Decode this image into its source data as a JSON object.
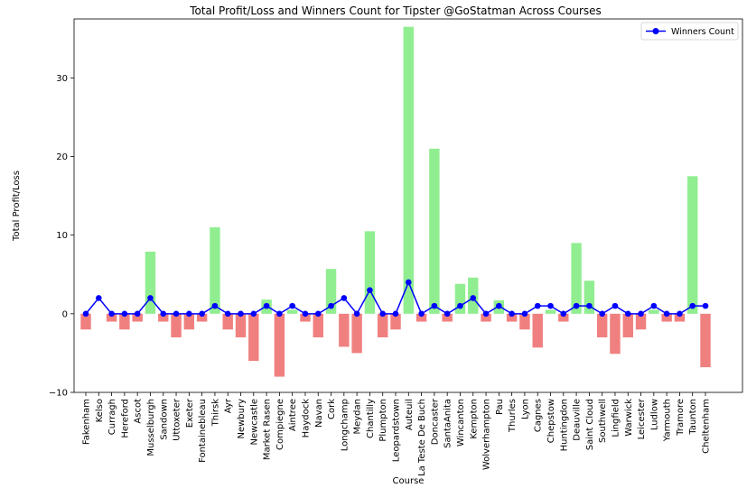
{
  "chart_data": {
    "type": "bar",
    "title": "Total Profit/Loss and Winners Count for Tipster @GoStatman Across Courses",
    "xlabel": "Course",
    "ylabel": "Total Profit/Loss",
    "ylim": [
      -10,
      37.5
    ],
    "yticks": [
      -10,
      0,
      10,
      20,
      30
    ],
    "categories": [
      "Fakenham",
      "Kelso",
      "Curragh",
      "Hereford",
      "Ascot",
      "Musselburgh",
      "Sandown",
      "Uttoxeter",
      "Exeter",
      "Fontainebleau",
      "Thirsk",
      "Ayr",
      "Newbury",
      "Newcastle",
      "Market Rasen",
      "Compiegne",
      "Aintree",
      "Haydock",
      "Navan",
      "Cork",
      "Longchamp",
      "Meydan",
      "Chantilly",
      "Plumpton",
      "Leopardstown",
      "Auteuil",
      "La Teste De Buch",
      "Doncaster",
      "SantaAnita",
      "Wincanton",
      "Kempton",
      "Wolverhampton",
      "Pau",
      "Thurles",
      "Lyon",
      "Cagnes",
      "Chepstow",
      "Huntingdon",
      "Deauville",
      "Saint Cloud",
      "Southwell",
      "Lingfield",
      "Warwick",
      "Leicester",
      "Ludlow",
      "Yarmouth",
      "Tramore",
      "Taunton",
      "Cheltenham"
    ],
    "series": [
      {
        "kind": "bar",
        "values": [
          -2,
          0,
          -1,
          -2,
          -1,
          7.9,
          -1,
          -3,
          -2,
          -1,
          11,
          -2,
          -3,
          -6,
          1.8,
          -8,
          0.5,
          -1,
          -3,
          5.7,
          -4.2,
          -5,
          10.5,
          -3,
          -2,
          36.5,
          -1,
          21,
          -1,
          3.8,
          4.6,
          -1,
          1.7,
          -1,
          -2,
          -4.3,
          0.5,
          -1,
          9,
          4.2,
          -3,
          -5.1,
          -3,
          -2,
          0.5,
          -1,
          -1,
          17.5,
          -6.8
        ],
        "positive_color": "#90ee90",
        "negative_color": "#f08080"
      },
      {
        "kind": "line",
        "name": "Winners Count",
        "values": [
          0,
          2,
          0,
          0,
          0,
          2,
          0,
          0,
          0,
          0,
          1,
          0,
          0,
          0,
          1,
          0,
          1,
          0,
          0,
          1,
          2,
          0,
          3,
          0,
          0,
          4,
          0,
          1,
          0,
          1,
          2,
          0,
          1,
          0,
          0,
          1,
          1,
          0,
          1,
          1,
          0,
          1,
          0,
          0,
          1,
          0,
          0,
          1,
          1
        ],
        "color": "#0000ff"
      }
    ],
    "legend_position": "top-right",
    "grid": false
  }
}
